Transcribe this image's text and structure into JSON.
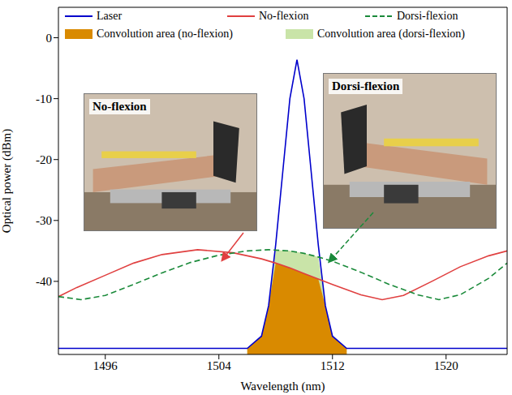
{
  "chart_data": {
    "type": "line",
    "x_label": "Wavelength (nm)",
    "y_label": "Optical power (dBm)",
    "xlim": [
      1492.7,
      1524.3
    ],
    "xticks": [
      1496,
      1504,
      1512,
      1520
    ],
    "ylim": [
      -52,
      5
    ],
    "yticks": [
      -40,
      -30,
      -20,
      -10,
      0
    ],
    "grid": false,
    "legend": "top",
    "annotations": [
      {
        "text": "No-flexion"
      },
      {
        "text": "Dorsi-flexion"
      }
    ],
    "series": [
      {
        "name": "Laser",
        "type": "line",
        "color": "#0000cc",
        "line_style": "solid",
        "x": [
          1492.7,
          1506,
          1507,
          1507.5,
          1508,
          1508.5,
          1509,
          1509.5,
          1510,
          1510.5,
          1511,
          1511.5,
          1512,
          1513,
          1524.3
        ],
        "values": [
          -51,
          -51,
          -49,
          -44,
          -34,
          -22,
          -10,
          -3.6,
          -10,
          -22,
          -34,
          -44,
          -49,
          -51,
          -51
        ]
      },
      {
        "name": "No-flexion",
        "type": "line",
        "color": "#e04040",
        "line_style": "solid",
        "x": [
          1492.7,
          1494,
          1496,
          1498,
          1500,
          1502.5,
          1505,
          1507,
          1508,
          1509,
          1510,
          1511,
          1512,
          1514,
          1515.5,
          1517,
          1519,
          1521,
          1523,
          1524.3
        ],
        "values": [
          -42.5,
          -41,
          -39,
          -37,
          -35.6,
          -34.8,
          -35.3,
          -36.3,
          -37,
          -37.8,
          -38.7,
          -39.6,
          -40.5,
          -42.2,
          -43,
          -42.3,
          -40,
          -37.6,
          -35.8,
          -35
        ]
      },
      {
        "name": "Dorsi-flexion",
        "type": "line",
        "color": "#1a8a3a",
        "line_style": "dashed",
        "x": [
          1492.7,
          1494.3,
          1496,
          1498,
          1500,
          1502,
          1504,
          1506,
          1507.5,
          1509,
          1510,
          1511,
          1512,
          1514,
          1516,
          1518,
          1519.5,
          1521,
          1523,
          1524.3
        ],
        "values": [
          -42.5,
          -43,
          -42.3,
          -40.5,
          -38.6,
          -36.9,
          -35.7,
          -35,
          -34.8,
          -35,
          -35.4,
          -36,
          -36.7,
          -38.5,
          -40.5,
          -42.2,
          -43,
          -42.2,
          -39.5,
          -37
        ]
      },
      {
        "name": "Convolution area (no-flexion)",
        "type": "area",
        "color": "#d98a00",
        "x": [
          1506,
          1507,
          1507.5,
          1508,
          1508.5,
          1509,
          1509.5,
          1510,
          1510.5,
          1511,
          1511.5,
          1512,
          1513
        ],
        "values": [
          -51,
          -49,
          -44,
          -37,
          -37.4,
          -37.8,
          -38.25,
          -38.7,
          -39.15,
          -39.6,
          -44,
          -49,
          -51
        ]
      },
      {
        "name": "Convolution area (dorsi-flexion)",
        "type": "area",
        "color": "#c9e4a8",
        "x": [
          1506,
          1507,
          1507.5,
          1508,
          1508.5,
          1509,
          1509.5,
          1510,
          1510.5,
          1511,
          1511.5,
          1512,
          1513
        ],
        "values": [
          -51,
          -49,
          -44,
          -34.87,
          -34.93,
          -35,
          -35.2,
          -35.4,
          -35.7,
          -36,
          -44,
          -49,
          -51
        ]
      }
    ]
  }
}
